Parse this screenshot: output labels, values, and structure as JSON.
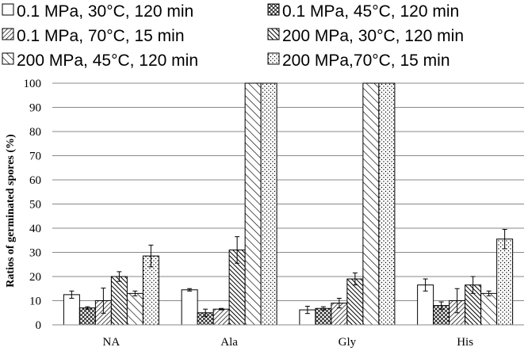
{
  "chart_data": {
    "type": "bar",
    "title": "",
    "xlabel": "",
    "ylabel": "Ratios of germinated spores (%)",
    "ylim": [
      0,
      100
    ],
    "yticks": [
      "0",
      "10",
      "20",
      "30",
      "40",
      "50",
      "60",
      "70",
      "80",
      "90",
      "100"
    ],
    "grid": true,
    "legend_position": "top",
    "categories": [
      "NA",
      "Ala",
      "Gly",
      "His"
    ],
    "series": [
      {
        "name": "0.1 MPa, 30°C, 120 min",
        "pattern": "white",
        "values": [
          12.5,
          14.5,
          6.2,
          16.5
        ],
        "errors": [
          1.5,
          0.5,
          1.5,
          2.5
        ]
      },
      {
        "name": "0.1 MPa, 45°C, 120 min",
        "pattern": "crosshatch",
        "values": [
          7.0,
          5.0,
          6.8,
          8.0
        ],
        "errors": [
          0.5,
          1.5,
          0.7,
          1.5
        ]
      },
      {
        "name": "0.1 MPa, 70°C, 15 min",
        "pattern": "diag-dense",
        "values": [
          10.0,
          6.5,
          9.0,
          10.0
        ],
        "errors": [
          5.2,
          0.3,
          2.0,
          5.0
        ]
      },
      {
        "name": "200 MPa, 30°C, 120 min",
        "pattern": "diag-medium",
        "values": [
          20.0,
          31.0,
          19.0,
          16.5
        ],
        "errors": [
          2.0,
          5.5,
          2.5,
          3.5
        ]
      },
      {
        "name": "200 MPa, 45°C, 120 min",
        "pattern": "diag-wide",
        "values": [
          13.0,
          100,
          100,
          13.0
        ],
        "errors": [
          1.0,
          0,
          0,
          1.0
        ]
      },
      {
        "name": "200 MPa,70°C, 15 min",
        "pattern": "dots",
        "values": [
          28.5,
          100,
          100,
          35.5
        ],
        "errors": [
          4.5,
          0,
          0,
          4.0
        ]
      }
    ]
  },
  "colors": {
    "bar_stroke": "#000000",
    "grid": "#888888",
    "fill": "#ffffff"
  }
}
